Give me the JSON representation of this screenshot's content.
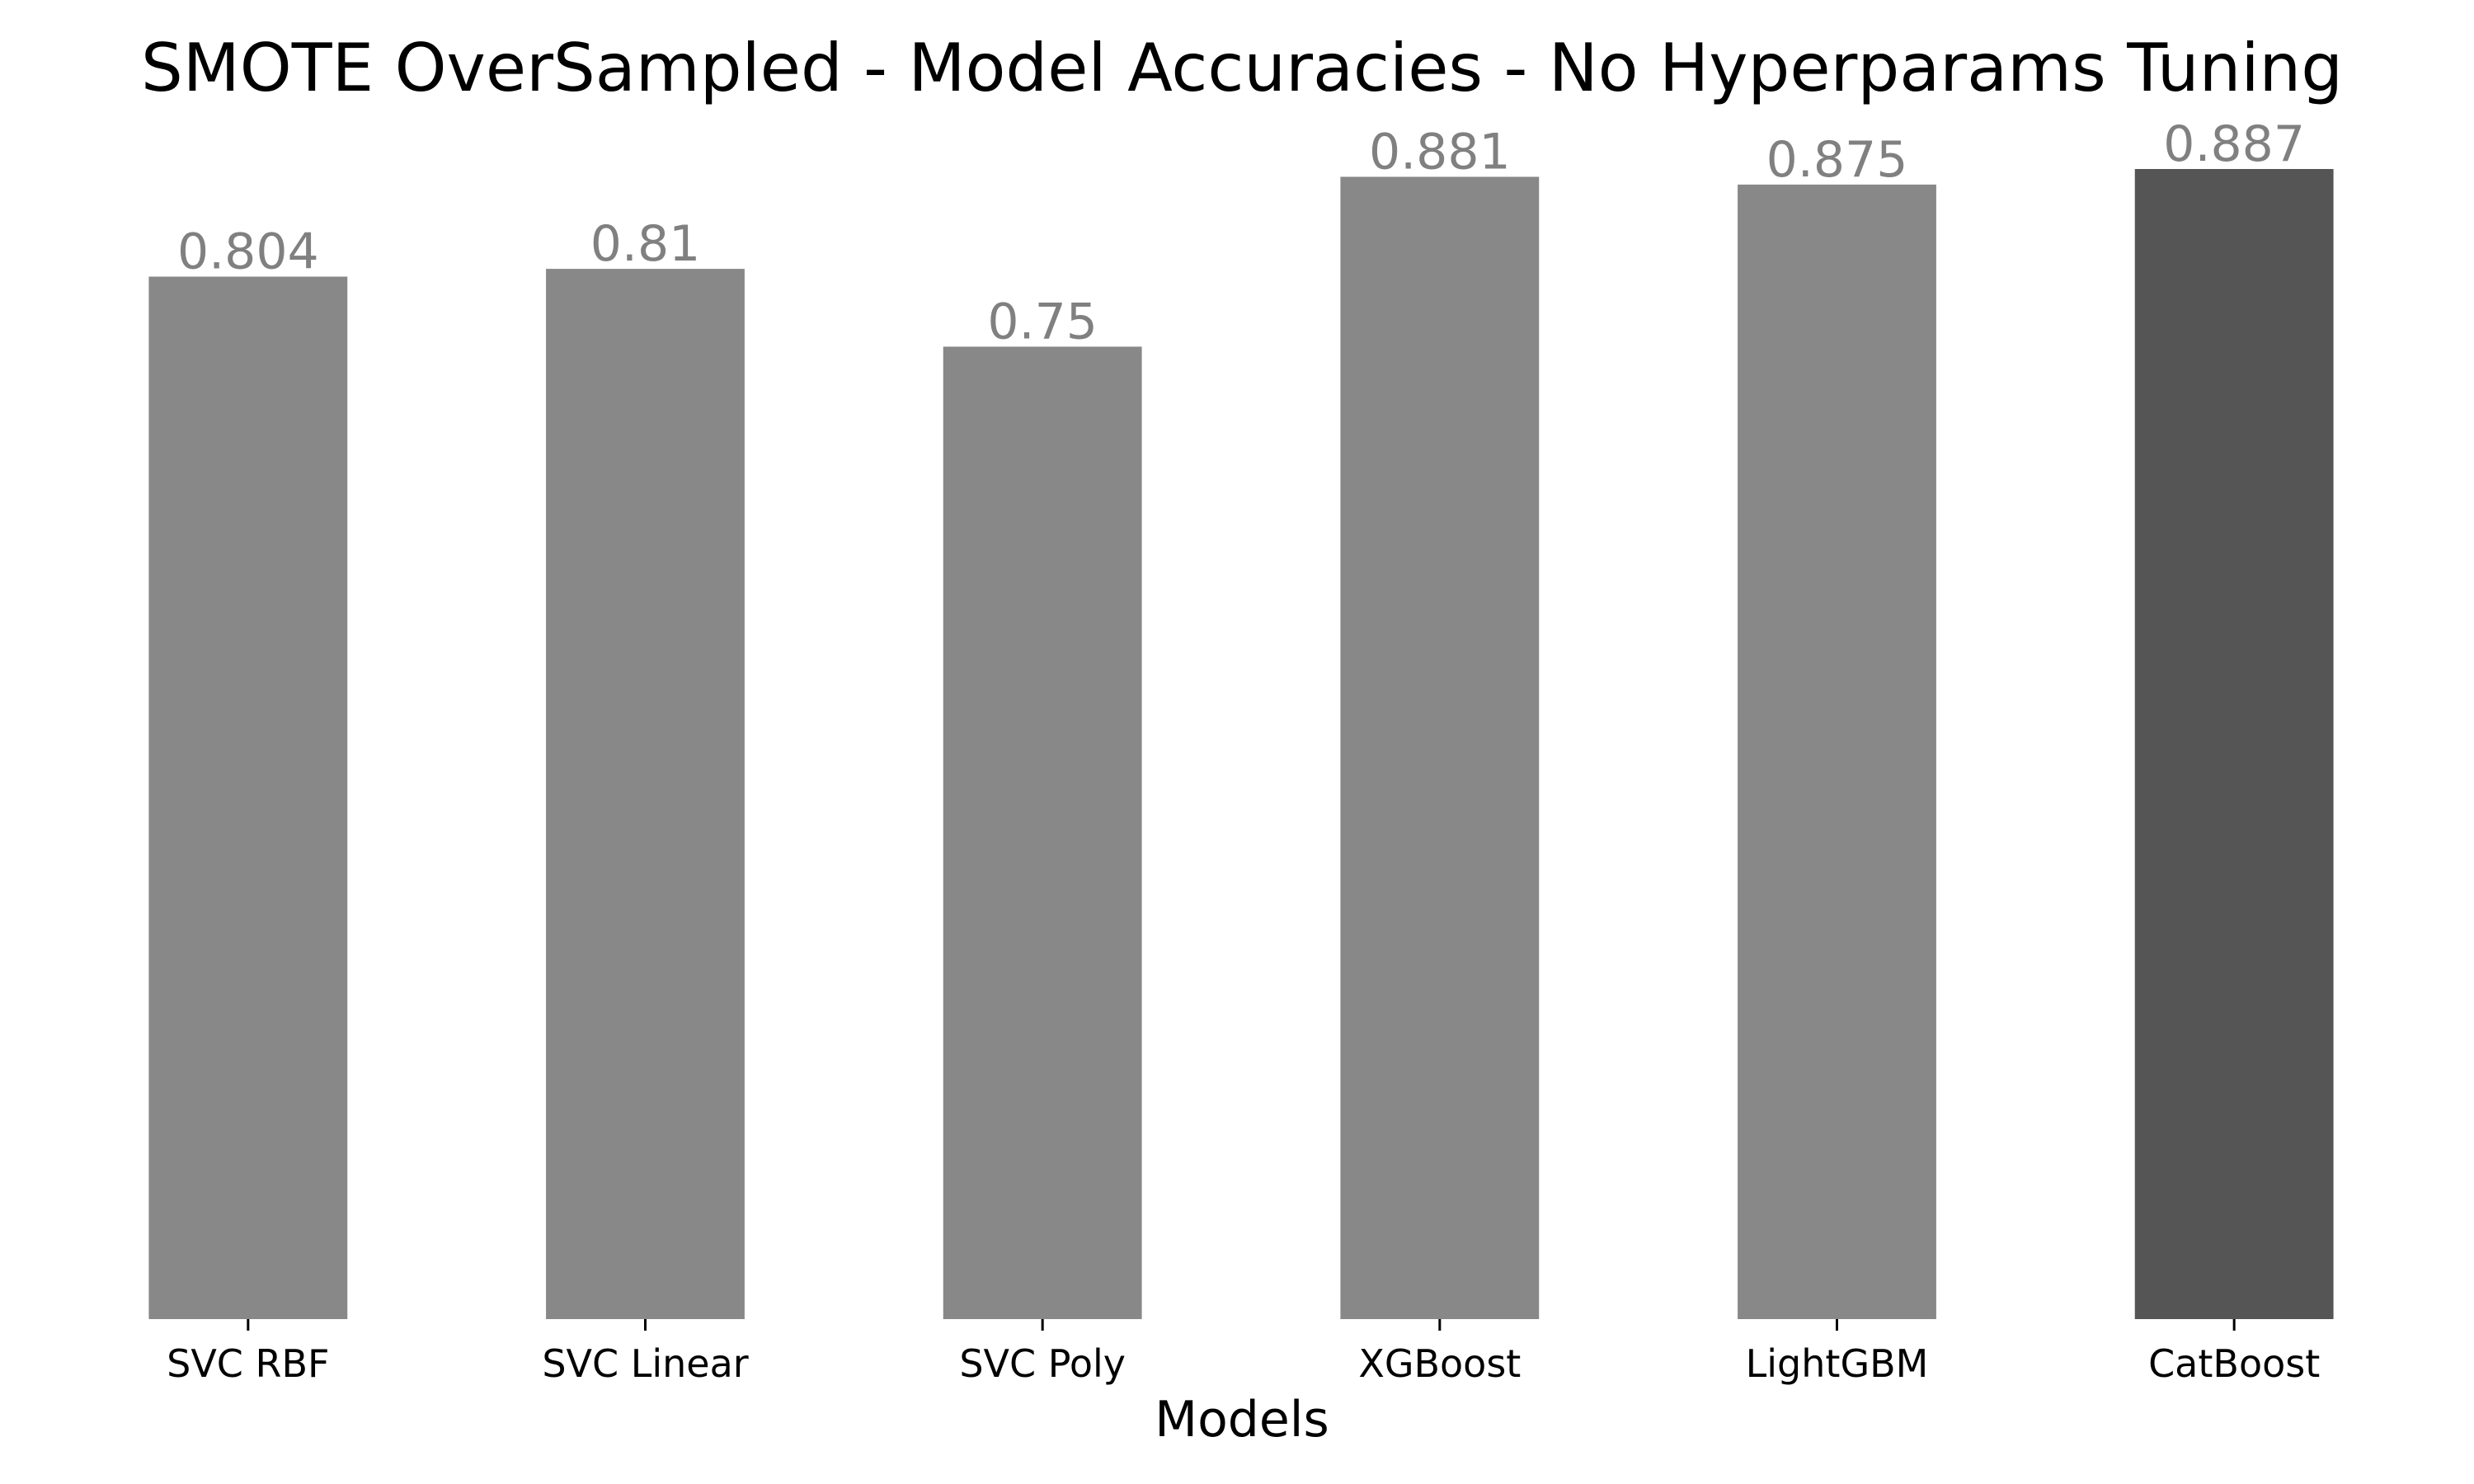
{
  "chart_data": {
    "type": "bar",
    "title": "SMOTE OverSampled - Model Accuracies - No Hyperparams Tuning",
    "xlabel": "Models",
    "ylabel": "",
    "categories": [
      "SVC RBF",
      "SVC Linear",
      "SVC Poly",
      "XGBoost",
      "LightGBM",
      "CatBoost"
    ],
    "values": [
      0.804,
      0.81,
      0.75,
      0.881,
      0.875,
      0.887
    ],
    "value_labels": [
      "0.804",
      "0.81",
      "0.75",
      "0.881",
      "0.875",
      "0.887"
    ],
    "ylim": [
      0,
      0.887
    ],
    "grid": false,
    "y_axis_visible": false,
    "colors": {
      "bar": "#888888",
      "highlight_bar": "#555555",
      "value_label": "#808080",
      "tick": "#000000"
    },
    "highlight_category": "CatBoost"
  }
}
